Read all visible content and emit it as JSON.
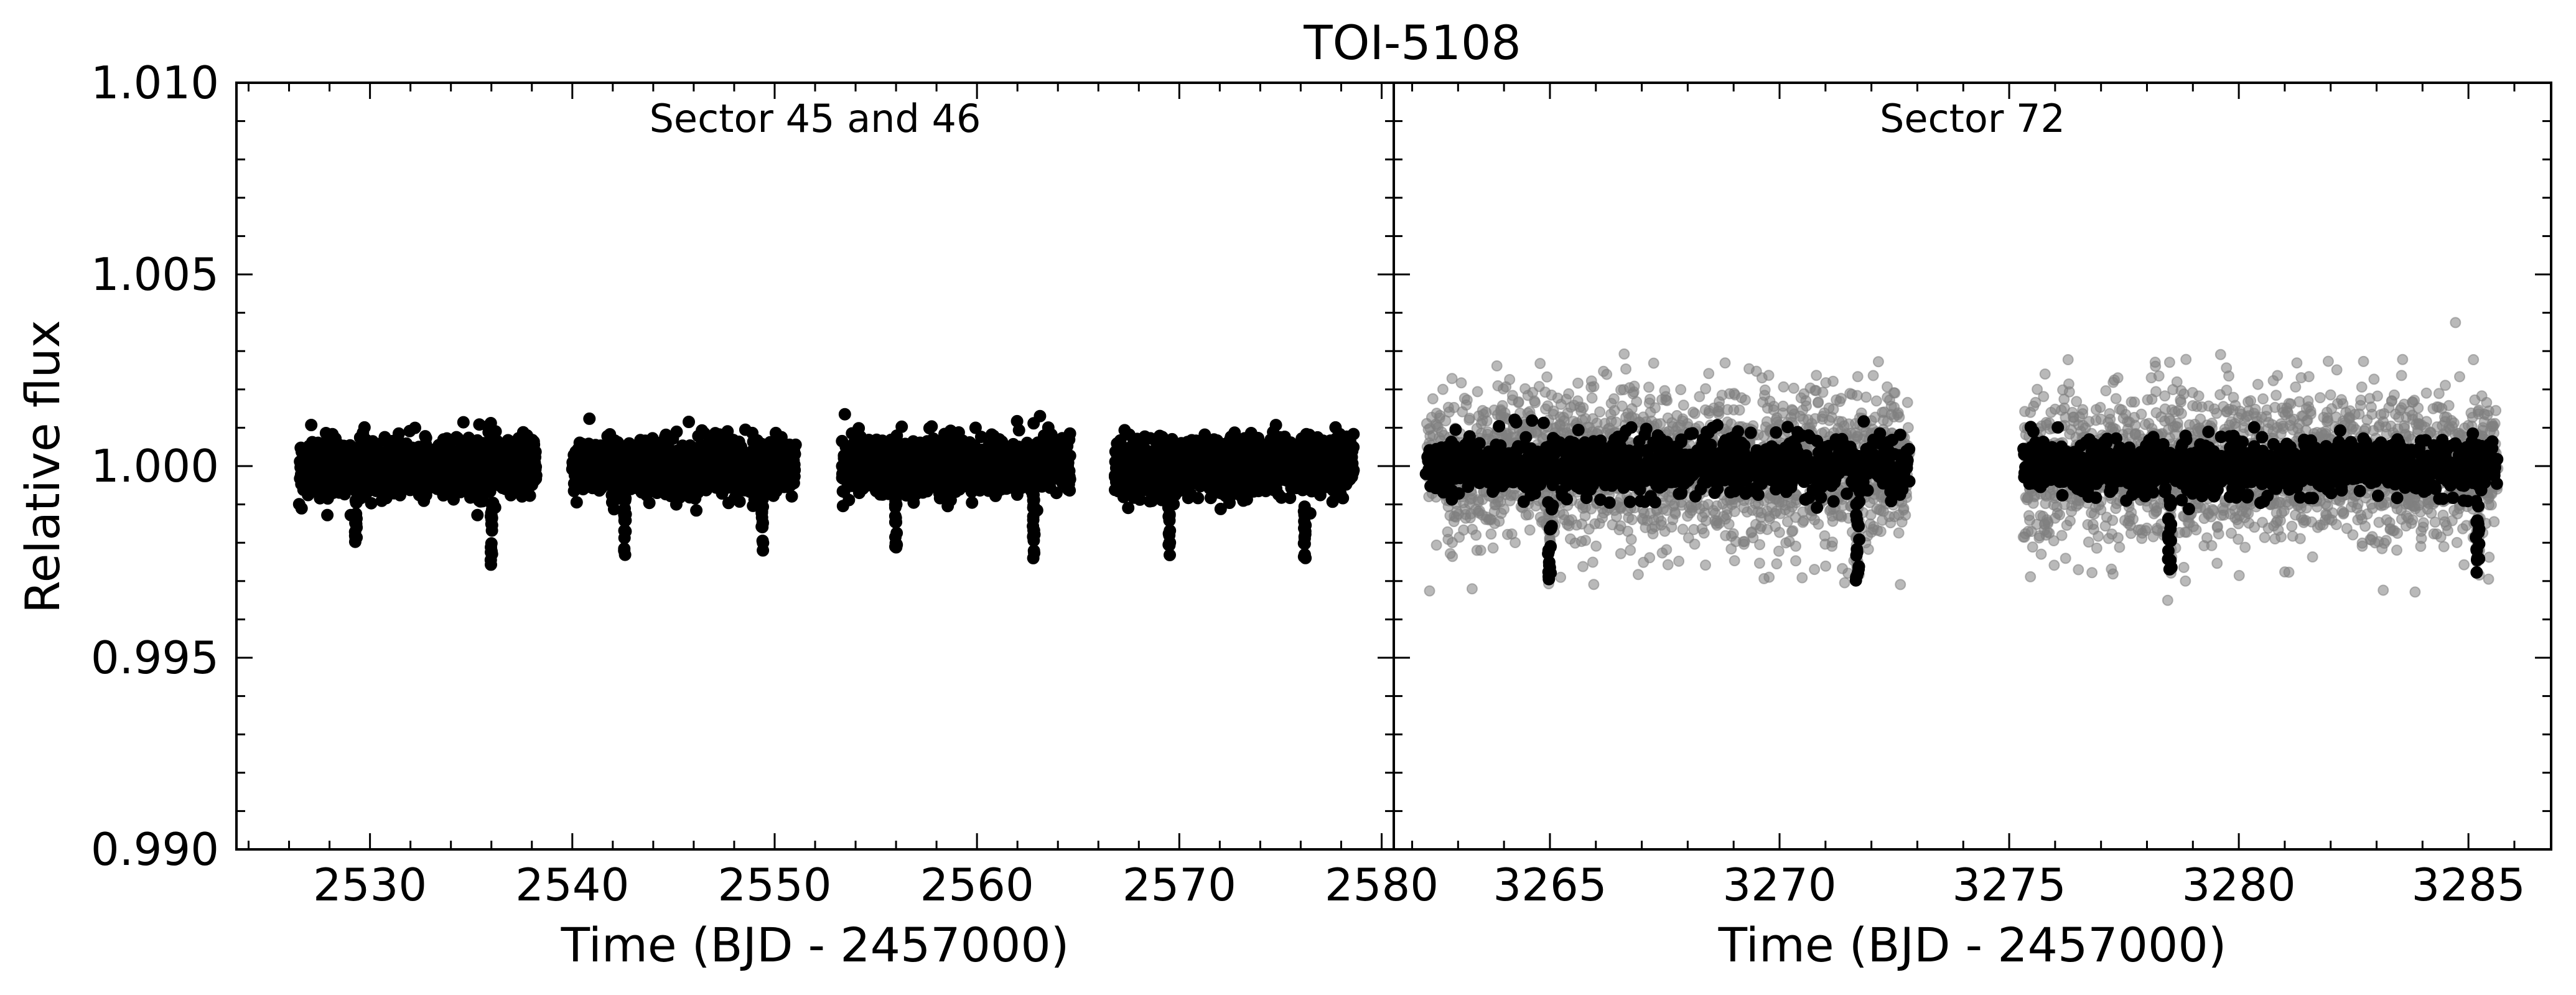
{
  "title": "TOI-5108",
  "ylabel": "Relative flux",
  "colors": {
    "binned": "#000000",
    "unbinned": "#808080"
  },
  "chart_data": [
    {
      "type": "scatter",
      "panel_label": "Sector 45 and 46",
      "xlabel": "Time (BJD - 2457000)",
      "ylabel": "Relative flux",
      "xlim": [
        2523.4,
        2580.6
      ],
      "ylim": [
        0.99,
        1.01
      ],
      "xticks": [
        "2530",
        "2540",
        "2550",
        "2560",
        "2570",
        "2580"
      ],
      "yticks": [
        "0.990",
        "0.995",
        "1.000",
        "1.005",
        "1.010"
      ],
      "data_segments": [
        {
          "x_start": 2526.5,
          "x_end": 2538.2
        },
        {
          "x_start": 2540.0,
          "x_end": 2551.0
        },
        {
          "x_start": 2553.3,
          "x_end": 2564.6
        },
        {
          "x_start": 2566.8,
          "x_end": 2578.6
        }
      ],
      "baseline_flux": 1.0,
      "scatter_range": [
        0.9993,
        1.0008
      ],
      "transit_times": [
        2529.3,
        2536.0,
        2542.6,
        2549.4,
        2556.0,
        2562.8,
        2569.5,
        2576.2
      ],
      "transit_min_flux": [
        0.9978,
        0.9972,
        0.9976,
        0.9978,
        0.9978,
        0.9975,
        0.9976,
        0.9975
      ],
      "series": [
        {
          "name": "",
          "color": "#000000"
        }
      ]
    },
    {
      "type": "scatter",
      "panel_label": "Sector 72",
      "xlabel": "Time (BJD - 2457000)",
      "ylabel": "",
      "xlim": [
        3261.6,
        3286.8
      ],
      "ylim": [
        0.99,
        1.01
      ],
      "xticks": [
        "3265",
        "3270",
        "3275",
        "3280",
        "3285"
      ],
      "yticks": [],
      "data_segments": [
        {
          "x_start": 3262.3,
          "x_end": 3272.8
        },
        {
          "x_start": 3275.3,
          "x_end": 3285.6
        }
      ],
      "baseline_flux": 1.0,
      "scatter_range_binned": [
        0.9992,
        1.0008
      ],
      "scatter_range_unbinned": [
        0.9978,
        1.0022
      ],
      "transit_times": [
        3265.0,
        3271.7,
        3278.5,
        3285.2
      ],
      "transit_min_flux": [
        0.9969,
        0.997,
        0.9972,
        0.9971
      ],
      "series": [
        {
          "name": "",
          "color": "#808080"
        },
        {
          "name": "",
          "color": "#000000"
        }
      ]
    }
  ]
}
